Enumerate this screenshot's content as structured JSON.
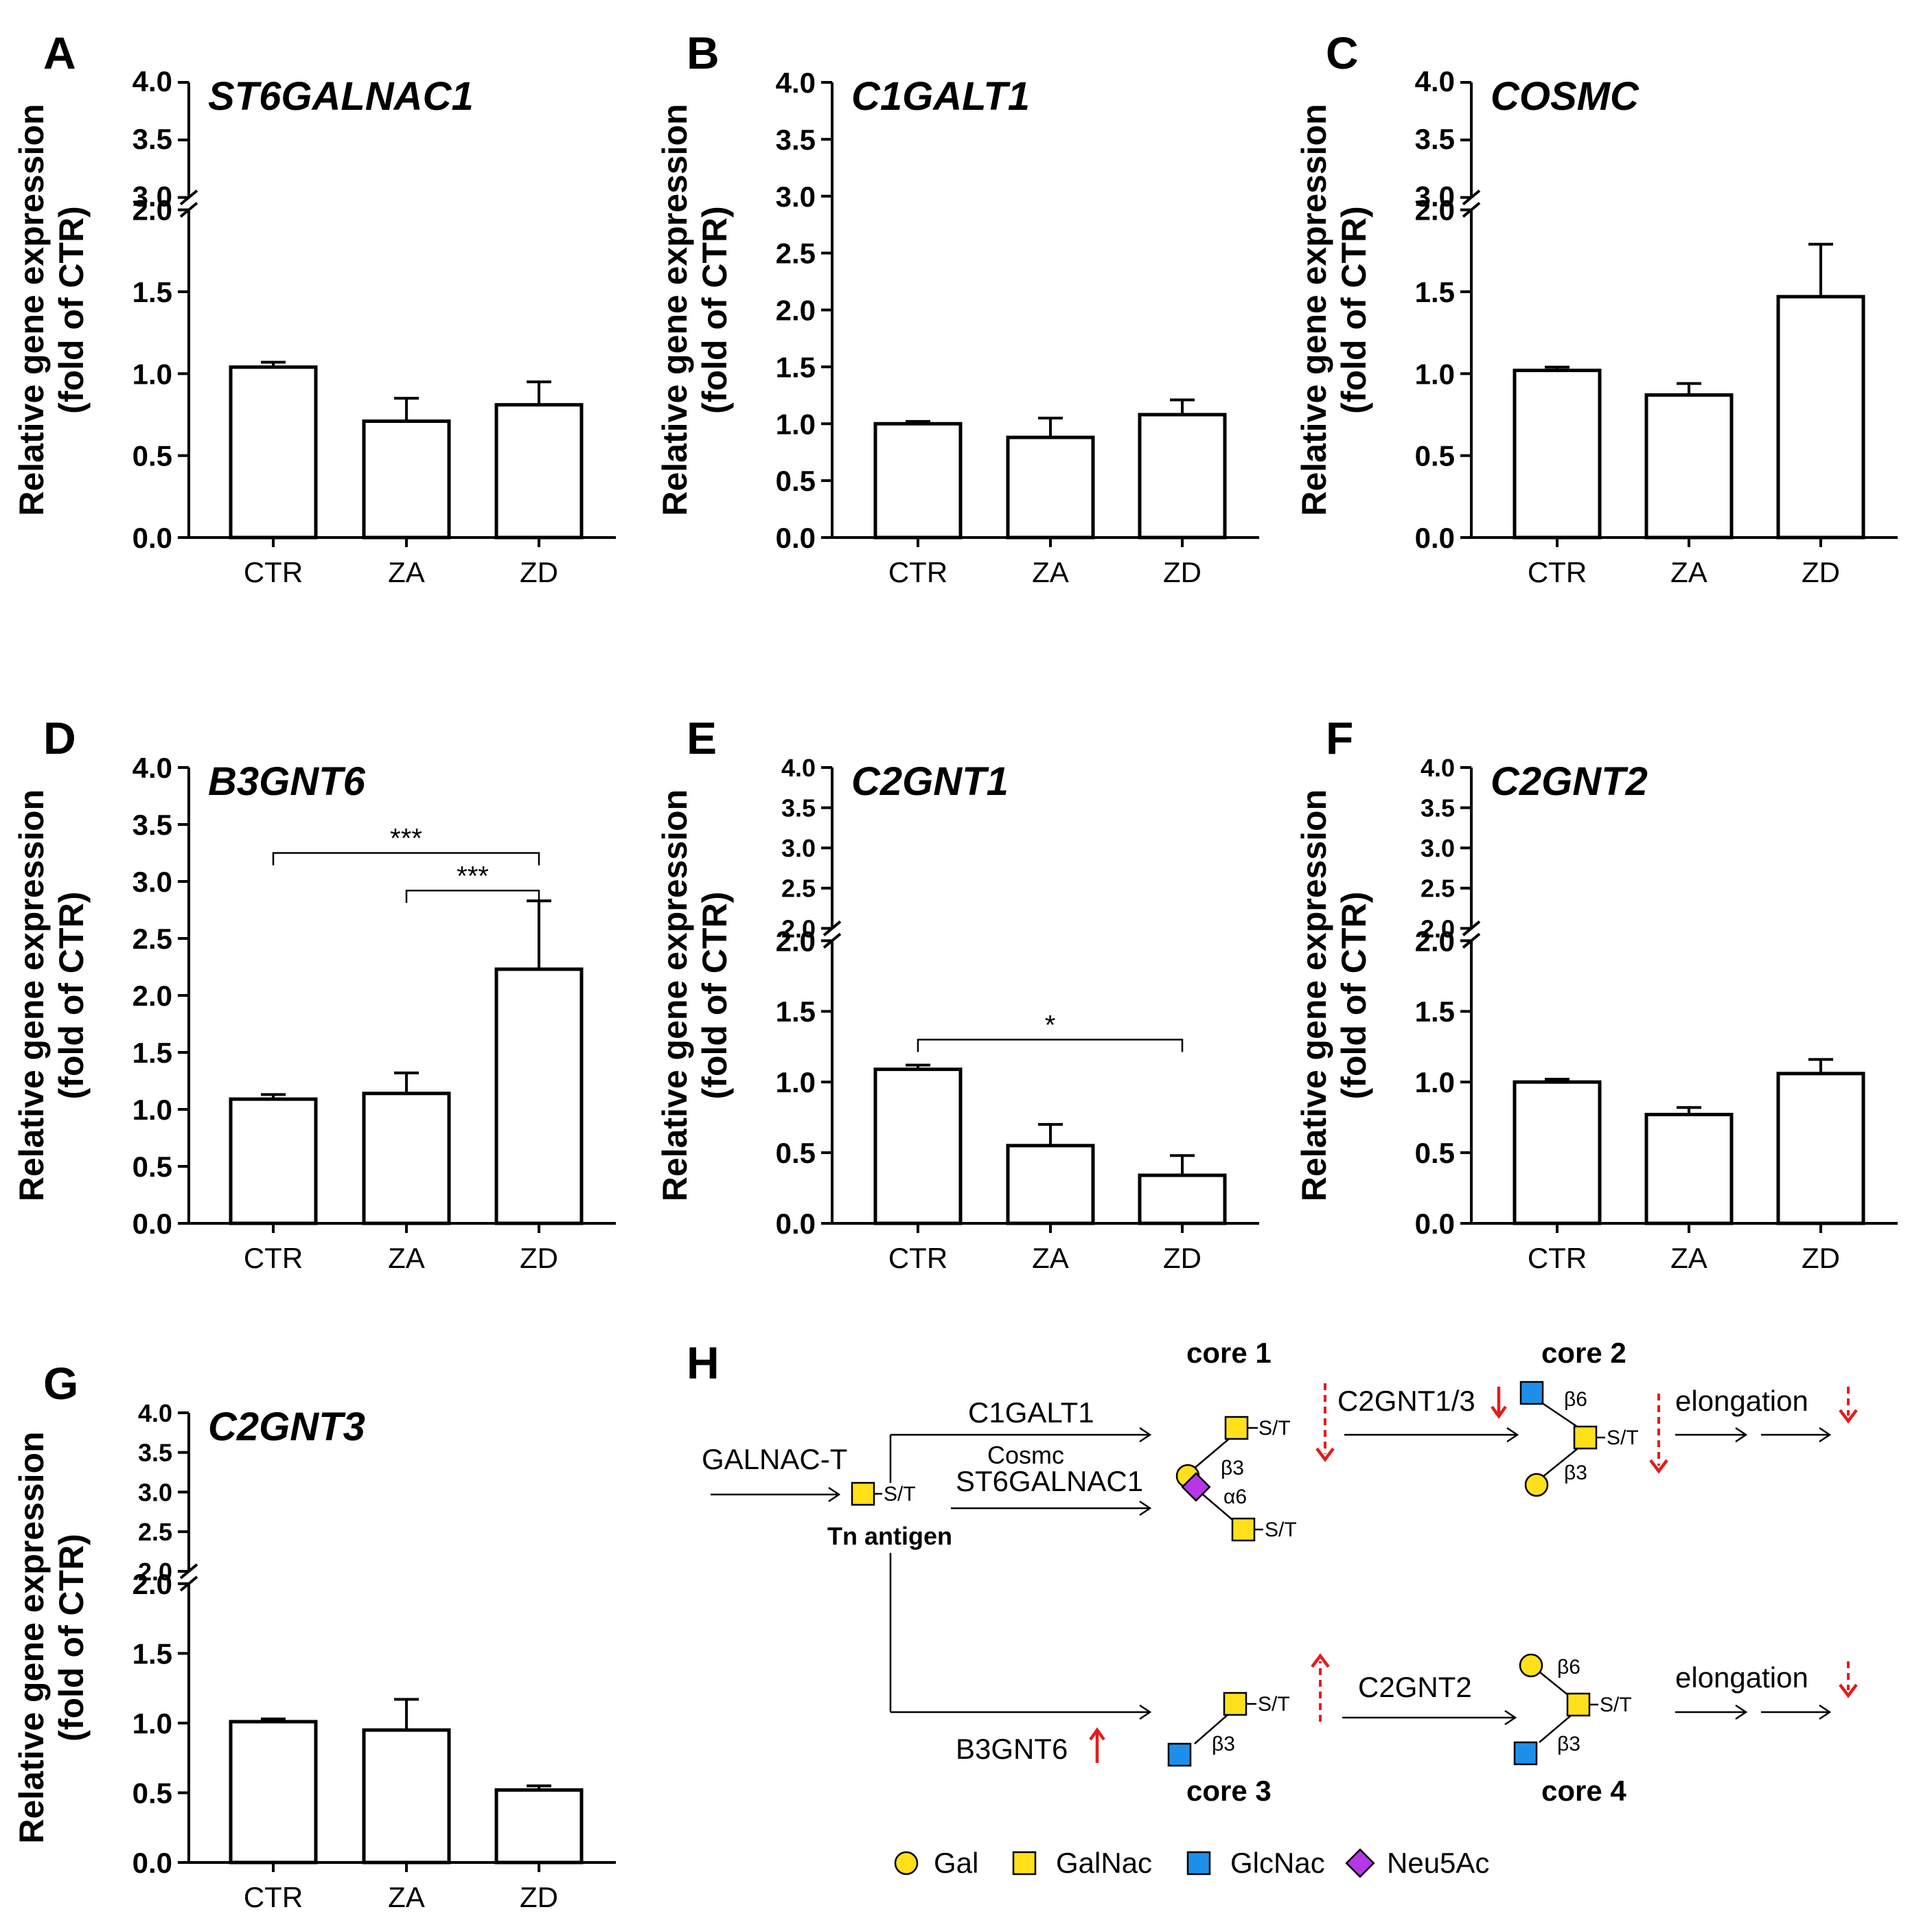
{
  "figure": {
    "y_axis_label_line1": "Relative gene expression",
    "y_axis_label_line2": "(fold of CTR)"
  },
  "chart_data": [
    {
      "panel": "A",
      "type": "bar",
      "title": "ST6GALNAC1",
      "categories": [
        "CTR",
        "ZA",
        "ZD"
      ],
      "values": [
        1.04,
        0.71,
        0.81
      ],
      "errors": [
        0.03,
        0.14,
        0.14
      ],
      "ylabel": "Relative gene expression (fold of CTR)",
      "ylim": [
        0,
        4.0
      ],
      "axis_break": [
        2.0,
        3.0
      ],
      "lower_ticks": [
        "0.0",
        "0.5",
        "1.0",
        "1.5",
        "2.0"
      ],
      "upper_ticks": [
        "3.0",
        "3.5",
        "4.0"
      ],
      "significance": []
    },
    {
      "panel": "B",
      "type": "bar",
      "title": "C1GALT1",
      "categories": [
        "CTR",
        "ZA",
        "ZD"
      ],
      "values": [
        1.0,
        0.88,
        1.08
      ],
      "errors": [
        0.02,
        0.17,
        0.13
      ],
      "ylabel": "Relative gene expression (fold of CTR)",
      "ylim": [
        0,
        4.0
      ],
      "axis_break": null,
      "lower_ticks": [
        "0.0",
        "0.5",
        "1.0",
        "1.5",
        "2.0",
        "2.5",
        "3.0",
        "3.5",
        "4.0"
      ],
      "upper_ticks": [],
      "significance": []
    },
    {
      "panel": "C",
      "type": "bar",
      "title": "COSMC",
      "categories": [
        "CTR",
        "ZA",
        "ZD"
      ],
      "values": [
        1.02,
        0.87,
        1.47
      ],
      "errors": [
        0.02,
        0.07,
        0.32
      ],
      "ylabel": "Relative gene expression (fold of CTR)",
      "ylim": [
        0,
        4.0
      ],
      "axis_break": [
        2.0,
        3.0
      ],
      "lower_ticks": [
        "0.0",
        "0.5",
        "1.0",
        "1.5",
        "2.0"
      ],
      "upper_ticks": [
        "3.0",
        "3.5",
        "4.0"
      ],
      "significance": []
    },
    {
      "panel": "D",
      "type": "bar",
      "title": "B3GNT6",
      "categories": [
        "CTR",
        "ZA",
        "ZD"
      ],
      "values": [
        1.09,
        1.14,
        2.23
      ],
      "errors": [
        0.04,
        0.18,
        0.6
      ],
      "ylabel": "Relative gene expression (fold of CTR)",
      "ylim": [
        0,
        4.0
      ],
      "axis_break": null,
      "lower_ticks": [
        "0.0",
        "0.5",
        "1.0",
        "1.5",
        "2.0",
        "2.5",
        "3.0",
        "3.5",
        "4.0"
      ],
      "upper_ticks": [],
      "significance": [
        {
          "from": "CTR",
          "to": "ZD",
          "label": "***",
          "y": 3.25
        },
        {
          "from": "ZA",
          "to": "ZD",
          "label": "***",
          "y": 2.92
        }
      ]
    },
    {
      "panel": "E",
      "type": "bar",
      "title": "C2GNT1",
      "categories": [
        "CTR",
        "ZA",
        "ZD"
      ],
      "values": [
        1.09,
        0.55,
        0.34
      ],
      "errors": [
        0.03,
        0.15,
        0.14
      ],
      "ylabel": "Relative gene expression (fold of CTR)",
      "ylim": [
        0,
        4.0
      ],
      "axis_break": [
        2.0,
        2.0
      ],
      "lower_ticks": [
        "0.0",
        "0.5",
        "1.0",
        "1.5",
        "2.0"
      ],
      "upper_ticks": [
        "2.0",
        "2.5",
        "3.0",
        "3.5",
        "4.0"
      ],
      "significance": [
        {
          "from": "CTR",
          "to": "ZD",
          "label": "*",
          "y": 1.3
        }
      ]
    },
    {
      "panel": "F",
      "type": "bar",
      "title": "C2GNT2",
      "categories": [
        "CTR",
        "ZA",
        "ZD"
      ],
      "values": [
        1.0,
        0.77,
        1.06
      ],
      "errors": [
        0.02,
        0.05,
        0.1
      ],
      "ylabel": "Relative gene expression (fold of CTR)",
      "ylim": [
        0,
        4.0
      ],
      "axis_break": [
        2.0,
        2.0
      ],
      "lower_ticks": [
        "0.0",
        "0.5",
        "1.0",
        "1.5",
        "2.0"
      ],
      "upper_ticks": [
        "2.0",
        "2.5",
        "3.0",
        "3.5",
        "4.0"
      ],
      "significance": []
    },
    {
      "panel": "G",
      "type": "bar",
      "title": "C2GNT3",
      "categories": [
        "CTR",
        "ZA",
        "ZD"
      ],
      "values": [
        1.01,
        0.95,
        0.52
      ],
      "errors": [
        0.02,
        0.22,
        0.03
      ],
      "ylabel": "Relative gene expression (fold of CTR)",
      "ylim": [
        0,
        4.0
      ],
      "axis_break": [
        2.0,
        2.0
      ],
      "lower_ticks": [
        "0.0",
        "0.5",
        "1.0",
        "1.5",
        "2.0"
      ],
      "upper_ticks": [
        "2.0",
        "2.5",
        "3.0",
        "3.5",
        "4.0"
      ],
      "significance": []
    }
  ],
  "diagram": {
    "label": "H",
    "tn_label": "Tn antigen",
    "st": "S/T",
    "galnac_t": "GALNAC-T",
    "c1galt1": "C1GALT1",
    "cosmc": "Cosmc",
    "st6galnac1": "ST6GALNAC1",
    "b3gnt6": "B3GNT6",
    "c2gnt13": "C2GNT1/3",
    "c2gnt2": "C2GNT2",
    "core1": "core 1",
    "core2": "core 2",
    "core3": "core 3",
    "core4": "core 4",
    "elongation": "elongation",
    "beta3": "β3",
    "beta6": "β6",
    "alpha6": "α6",
    "legend": {
      "gal": "Gal",
      "galnac": "GalNac",
      "glcnac": "GlcNac",
      "neu5ac": "Neu5Ac"
    },
    "colors": {
      "gal": "#ffe01b",
      "galnac": "#ffe01b",
      "glcnac": "#1e8fe8",
      "neu5ac": "#b736e8",
      "arrow_red": "#e81a1a"
    }
  }
}
